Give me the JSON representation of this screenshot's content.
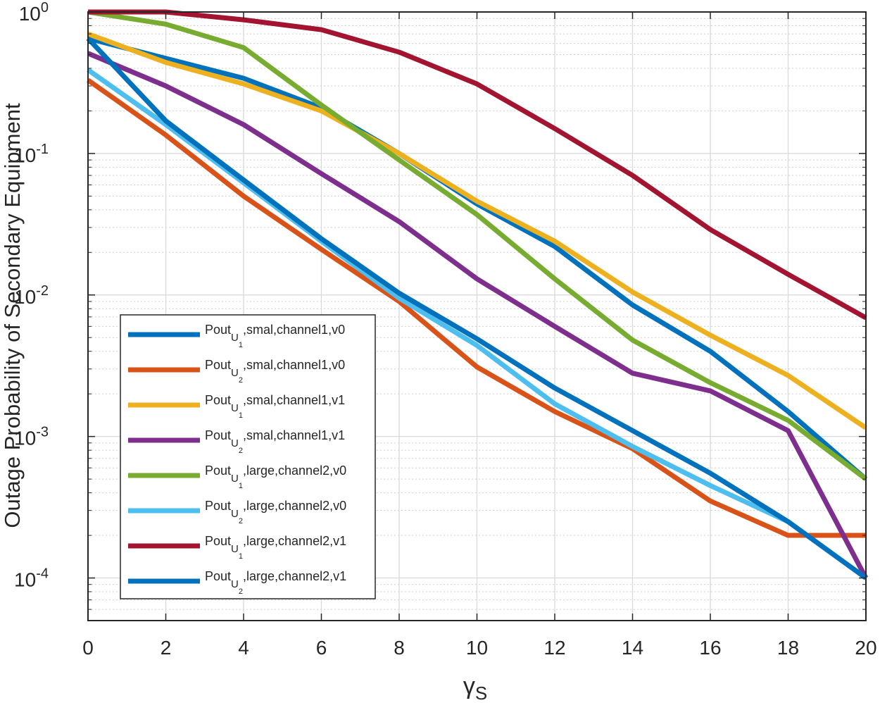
{
  "chart_data": {
    "type": "line",
    "title": "",
    "xlabel": "γ",
    "xlabel_sub": "S",
    "ylabel": "Outage Probability of Secondary Equipment",
    "xlim": [
      0,
      20
    ],
    "ylim": [
      5e-05,
      1
    ],
    "yscale": "log",
    "grid": true,
    "legend_position": "bottom-left",
    "x": [
      0,
      2,
      4,
      6,
      8,
      10,
      12,
      14,
      16,
      18,
      20
    ],
    "xticks": [
      "0",
      "2",
      "4",
      "6",
      "8",
      "10",
      "12",
      "14",
      "16",
      "18",
      "20"
    ],
    "yticks": [
      {
        "base": "10",
        "exp": "0"
      },
      {
        "base": "10",
        "exp": "-1"
      },
      {
        "base": "10",
        "exp": "-2"
      },
      {
        "base": "10",
        "exp": "-3"
      },
      {
        "base": "10",
        "exp": "-4"
      }
    ],
    "series": [
      {
        "name": "Pout U1,smal,channel1,v0",
        "prefix": "Pout",
        "sub1": "U",
        "sub2": "1",
        "suffix": ",smal,channel1,v0",
        "color": "#0072BD",
        "values": [
          0.65,
          0.47,
          0.34,
          0.21,
          0.1,
          0.044,
          0.022,
          0.0085,
          0.004,
          0.0015,
          0.0005
        ]
      },
      {
        "name": "Pout U2,smal,channel1,v0",
        "prefix": "Pout",
        "sub1": "U",
        "sub2": "2",
        "suffix": ",smal,channel1,v0",
        "color": "#D95319",
        "values": [
          0.33,
          0.135,
          0.05,
          0.021,
          0.009,
          0.0031,
          0.0015,
          0.00082,
          0.00035,
          0.0002,
          0.0002
        ]
      },
      {
        "name": "Pout U1,smal,channel1,v1",
        "prefix": "Pout",
        "sub1": "U",
        "sub2": "1",
        "suffix": ",smal,channel1,v1",
        "color": "#EDB120",
        "values": [
          0.7,
          0.44,
          0.31,
          0.2,
          0.1,
          0.046,
          0.024,
          0.0105,
          0.0052,
          0.0027,
          0.00115
        ]
      },
      {
        "name": "Pout U2,smal,channel1,v1",
        "prefix": "Pout",
        "sub1": "U",
        "sub2": "2",
        "suffix": ",smal,channel1,v1",
        "color": "#7E2F8E",
        "values": [
          0.51,
          0.3,
          0.16,
          0.072,
          0.033,
          0.013,
          0.006,
          0.0028,
          0.0021,
          0.0011,
          0.0001
        ]
      },
      {
        "name": "Pout U1,large,channel2,v0",
        "prefix": "Pout",
        "sub1": "U",
        "sub2": "1",
        "suffix": ",large,channel2,v0",
        "color": "#77AC30",
        "values": [
          1.0,
          0.82,
          0.56,
          0.22,
          0.09,
          0.037,
          0.013,
          0.0048,
          0.0024,
          0.0013,
          0.0005
        ]
      },
      {
        "name": "Pout U2,large,channel2,v0",
        "prefix": "Pout",
        "sub1": "U",
        "sub2": "2",
        "suffix": ",large,channel2,v0",
        "color": "#4DBEEE",
        "values": [
          0.39,
          0.16,
          0.062,
          0.024,
          0.0095,
          0.0044,
          0.0017,
          0.00085,
          0.00045,
          0.00025,
          0.0001
        ]
      },
      {
        "name": "Pout U1,large,channel2,v1",
        "prefix": "Pout",
        "sub1": "U",
        "sub2": "1",
        "suffix": ",large,channel2,v1",
        "color": "#A2142F",
        "values": [
          1.0,
          1.0,
          0.88,
          0.75,
          0.52,
          0.31,
          0.15,
          0.07,
          0.029,
          0.014,
          0.0069
        ]
      },
      {
        "name": "Pout U2,large,channel2,v1",
        "prefix": "Pout",
        "sub1": "U",
        "sub2": "2",
        "suffix": ",large,channel2,v1",
        "color": "#0072BD",
        "values": [
          0.65,
          0.17,
          0.065,
          0.025,
          0.0103,
          0.0049,
          0.0022,
          0.0011,
          0.00055,
          0.00025,
          0.0001
        ]
      }
    ]
  }
}
